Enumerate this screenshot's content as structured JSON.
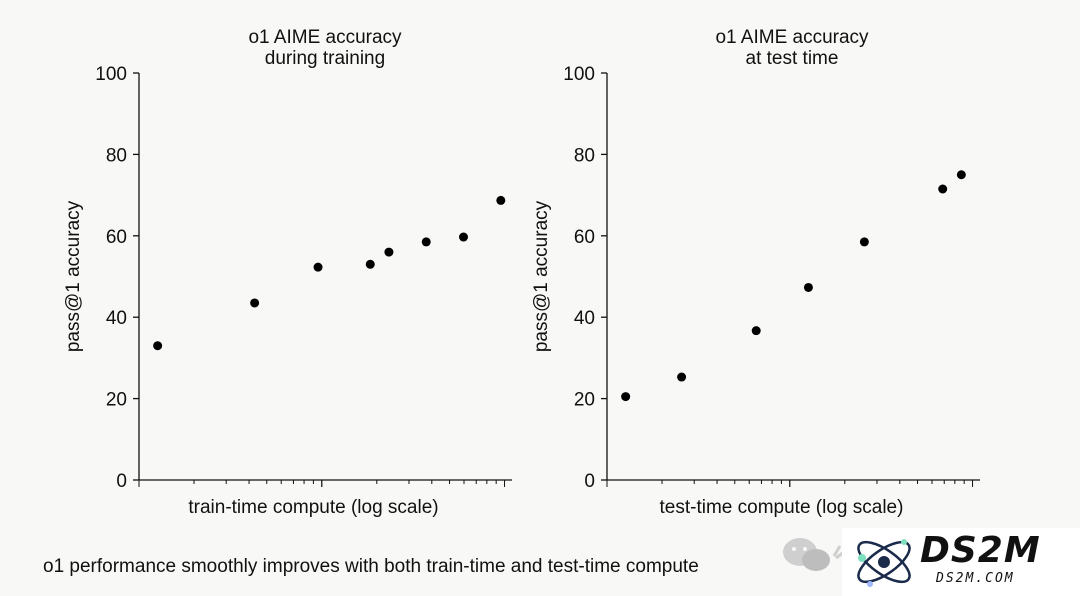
{
  "chart_data": [
    {
      "type": "scatter",
      "title": [
        "o1 AIME accuracy",
        "during training"
      ],
      "xlabel": "train-time compute (log scale)",
      "ylabel": "pass@1 accuracy",
      "ylim": [
        0,
        100
      ],
      "yticks": [
        0,
        20,
        40,
        60,
        80,
        100
      ],
      "x_scale": "log",
      "x_tick_labels": "none",
      "grid": false,
      "points": [
        {
          "x": 0.05,
          "y": 33
        },
        {
          "x": 0.31,
          "y": 43.5
        },
        {
          "x": 0.48,
          "y": 52.3
        },
        {
          "x": 0.62,
          "y": 53
        },
        {
          "x": 0.67,
          "y": 56
        },
        {
          "x": 0.77,
          "y": 58.5
        },
        {
          "x": 0.87,
          "y": 59.7
        },
        {
          "x": 0.97,
          "y": 68.7
        }
      ]
    },
    {
      "type": "scatter",
      "title": [
        "o1 AIME accuracy",
        "at test time"
      ],
      "xlabel": "test-time compute (log scale)",
      "ylabel": "pass@1 accuracy",
      "ylim": [
        0,
        100
      ],
      "yticks": [
        0,
        20,
        40,
        60,
        80,
        100
      ],
      "x_scale": "log",
      "x_tick_labels": "none",
      "grid": false,
      "points": [
        {
          "x": 0.05,
          "y": 20.5
        },
        {
          "x": 0.2,
          "y": 25.3
        },
        {
          "x": 0.4,
          "y": 36.7
        },
        {
          "x": 0.54,
          "y": 47.3
        },
        {
          "x": 0.69,
          "y": 58.5
        },
        {
          "x": 0.9,
          "y": 71.5
        },
        {
          "x": 0.95,
          "y": 75
        }
      ]
    }
  ],
  "caption": "o1 performance smoothly improves with both train-time and test-time compute",
  "watermark": {
    "icon": "wechat-icon",
    "brand": "DS2M",
    "url": "DS2M.COM",
    "logo_icon": "atom-icon"
  },
  "colors": {
    "background": "#f8f8f6",
    "points": "#000000",
    "axes": "#111111"
  }
}
